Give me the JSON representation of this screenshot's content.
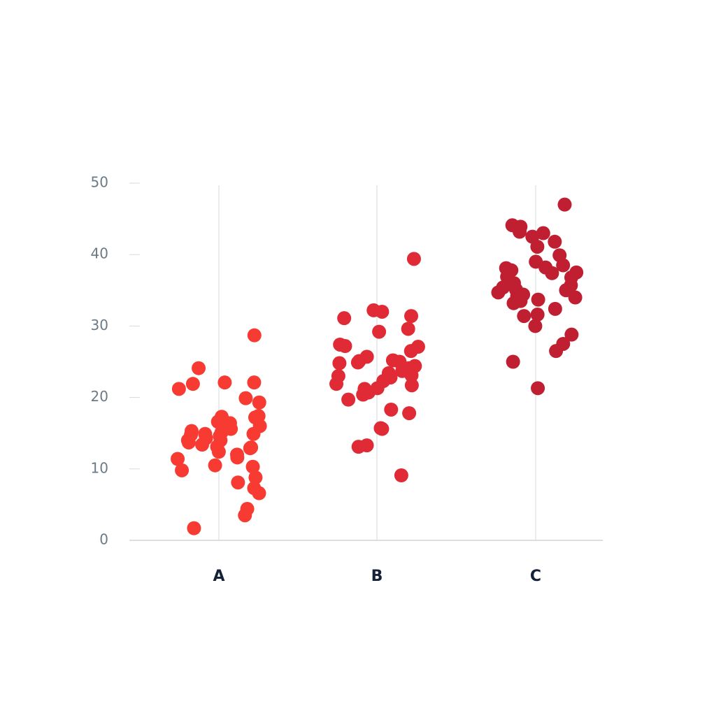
{
  "chart_data": {
    "type": "strip",
    "categories": [
      "A",
      "B",
      "C"
    ],
    "series": [
      {
        "name": "A",
        "color": "#f73b32",
        "values": [
          28.7,
          24.1,
          22.1,
          22.1,
          21.9,
          21.2,
          19.9,
          19.3,
          17.4,
          17.3,
          17.2,
          16.6,
          16.0,
          16.4,
          15.6,
          15.3,
          15.1,
          14.9,
          14.9,
          14.8,
          14.6,
          14.3,
          14.0,
          14.0,
          13.7,
          13.4,
          13.1,
          13.0,
          12.9,
          12.4,
          12.0,
          11.6,
          11.4,
          10.3,
          10.5,
          9.8,
          8.8,
          8.1,
          7.3,
          6.6,
          4.4,
          3.5,
          1.7
        ]
      },
      {
        "name": "B",
        "color": "#e02a36",
        "values": [
          39.4,
          32.2,
          32.0,
          31.4,
          31.1,
          29.6,
          29.2,
          27.4,
          27.2,
          27.1,
          26.5,
          25.7,
          25.2,
          25.1,
          25.0,
          24.9,
          24.8,
          24.4,
          24.1,
          23.7,
          23.4,
          23.1,
          23.0,
          22.8,
          22.3,
          21.9,
          21.7,
          21.3,
          21.2,
          20.7,
          20.4,
          19.7,
          18.3,
          17.8,
          15.7,
          15.6,
          13.3,
          13.1,
          9.1
        ]
      },
      {
        "name": "C",
        "color": "#c01f31",
        "values": [
          47.0,
          44.1,
          43.9,
          43.2,
          43.0,
          42.5,
          41.8,
          41.1,
          39.9,
          39.0,
          38.5,
          38.2,
          38.1,
          37.8,
          37.5,
          37.4,
          36.9,
          36.8,
          36.0,
          35.7,
          35.4,
          35.1,
          35.0,
          34.7,
          34.4,
          34.2,
          34.0,
          33.7,
          33.5,
          33.2,
          32.4,
          31.6,
          31.4,
          30.0,
          28.8,
          27.5,
          26.5,
          25.0,
          21.3
        ]
      }
    ],
    "ylim": [
      0,
      50
    ],
    "yticks": [
      0,
      10,
      20,
      30,
      40,
      50
    ],
    "grid": true
  }
}
